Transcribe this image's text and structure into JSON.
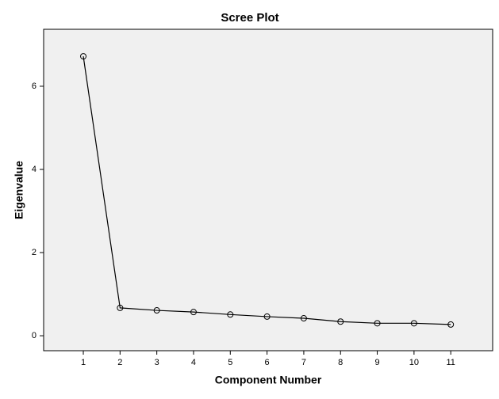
{
  "chart_data": {
    "type": "line",
    "title": "Scree Plot",
    "x_label": "Component Number",
    "y_label": "Eigenvalue",
    "x": [
      1,
      2,
      3,
      4,
      5,
      6,
      7,
      8,
      9,
      10,
      11
    ],
    "series": [
      {
        "color": "#000000",
        "values": [
          6.72,
          0.67,
          0.61,
          0.57,
          0.51,
          0.46,
          0.42,
          0.34,
          0.3,
          0.3,
          0.27
        ]
      }
    ],
    "xlim": [
      -0.08,
      12.14
    ],
    "xticks": [
      1,
      2,
      3,
      4,
      5,
      6,
      7,
      8,
      9,
      10,
      11
    ],
    "ylim": [
      -0.36,
      7.37
    ],
    "yticks": [
      0,
      2,
      4,
      6
    ],
    "grid": false
  }
}
